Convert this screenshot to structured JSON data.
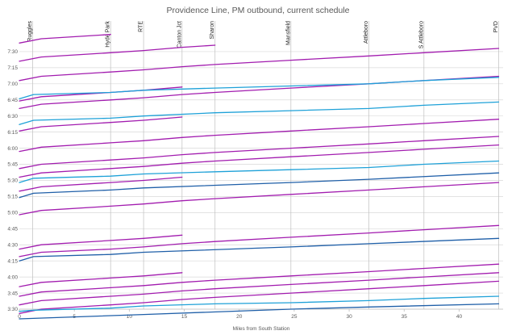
{
  "chart_data": {
    "type": "line",
    "title": "Providence Line, PM outbound, current schedule",
    "xlabel": "Miles from South Station",
    "ylabel": "",
    "xlim": [
      0,
      44
    ],
    "ylim": [
      210,
      465
    ],
    "x_ticks": [
      0,
      5,
      10,
      15,
      20,
      25,
      30,
      35,
      40
    ],
    "x_tick_labels": [
      "0",
      "5",
      "10",
      "15",
      "20",
      "25",
      "30",
      "35",
      "40"
    ],
    "y_ticks": [
      210,
      225,
      240,
      255,
      270,
      285,
      300,
      315,
      330,
      345,
      360,
      375,
      390,
      405,
      420,
      435,
      450
    ],
    "y_tick_labels": [
      "3:30",
      "3:45",
      "4:00",
      "4:15",
      "4:30",
      "4:45",
      "5:00",
      "5:15",
      "5:30",
      "5:45",
      "6:00",
      "6:15",
      "6:30",
      "6:45",
      "7:00",
      "7:15",
      "7:30"
    ],
    "grid": true,
    "stations": [
      {
        "name": "Ruggles",
        "mile": 1.2
      },
      {
        "name": "Hyde Park",
        "mile": 8.3
      },
      {
        "name": "RTE",
        "mile": 11.3
      },
      {
        "name": "Canton Jct",
        "mile": 14.8
      },
      {
        "name": "Sharon",
        "mile": 17.8
      },
      {
        "name": "Mansfield",
        "mile": 24.7
      },
      {
        "name": "Attleboro",
        "mile": 31.8
      },
      {
        "name": "S Attleboro",
        "mile": 36.8
      },
      {
        "name": "PVD",
        "mile": 43.6
      }
    ],
    "colors": {
      "local": "#a21caf",
      "express": "#1ea1d8",
      "super_express": "#1f5fa8"
    },
    "series": [
      {
        "type": "local",
        "points": [
          [
            0,
            206
          ],
          [
            2,
            210
          ],
          [
            8.3,
            214
          ],
          [
            11.3,
            216
          ],
          [
            14.8,
            219
          ],
          [
            17.8,
            221
          ],
          [
            24.7,
            225
          ],
          [
            31.8,
            229
          ],
          [
            36.8,
            232
          ],
          [
            43.6,
            236
          ]
        ]
      },
      {
        "type": "express",
        "points": [
          [
            0,
            208
          ],
          [
            1.3,
            209
          ],
          [
            8.3,
            211
          ],
          [
            11.3,
            213
          ],
          [
            17.8,
            215
          ],
          [
            24.7,
            216
          ],
          [
            31.8,
            218
          ],
          [
            36.8,
            220
          ],
          [
            43.6,
            222
          ]
        ]
      },
      {
        "type": "super_express",
        "points": [
          [
            0,
            201
          ],
          [
            11.3,
            205
          ],
          [
            24.7,
            210
          ],
          [
            31.8,
            212
          ],
          [
            43.6,
            215
          ]
        ]
      },
      {
        "type": "local",
        "points": [
          [
            0,
            214
          ],
          [
            2,
            218
          ],
          [
            8.3,
            222
          ],
          [
            11.3,
            224
          ],
          [
            14.8,
            227
          ],
          [
            17.8,
            229
          ],
          [
            24.7,
            233
          ],
          [
            31.8,
            237
          ],
          [
            36.8,
            240
          ],
          [
            43.6,
            244
          ]
        ]
      },
      {
        "type": "local",
        "points": [
          [
            0,
            222
          ],
          [
            2,
            226
          ],
          [
            8.3,
            230
          ],
          [
            11.3,
            232
          ],
          [
            14.8,
            235
          ],
          [
            17.8,
            237
          ],
          [
            24.7,
            241
          ],
          [
            31.8,
            245
          ],
          [
            36.8,
            248
          ],
          [
            43.6,
            252
          ]
        ]
      },
      {
        "type": "local",
        "points": [
          [
            0,
            231
          ],
          [
            2,
            235
          ],
          [
            8.3,
            239
          ],
          [
            11.3,
            241
          ],
          [
            14.8,
            244
          ]
        ]
      },
      {
        "type": "super_express",
        "points": [
          [
            0,
            255
          ],
          [
            1.3,
            259
          ],
          [
            8.3,
            261
          ],
          [
            11.3,
            263
          ],
          [
            24.7,
            268
          ],
          [
            31.8,
            271
          ],
          [
            43.6,
            276
          ]
        ]
      },
      {
        "type": "local",
        "points": [
          [
            0,
            259
          ],
          [
            2,
            263
          ],
          [
            8.3,
            266
          ],
          [
            11.3,
            268
          ],
          [
            14.8,
            271
          ],
          [
            17.8,
            273
          ],
          [
            24.7,
            277
          ],
          [
            31.8,
            281
          ],
          [
            36.8,
            284
          ],
          [
            43.6,
            288
          ]
        ]
      },
      {
        "type": "local",
        "points": [
          [
            0,
            266
          ],
          [
            2,
            270
          ],
          [
            8.3,
            274
          ],
          [
            11.3,
            276
          ],
          [
            14.8,
            279
          ]
        ]
      },
      {
        "type": "local",
        "points": [
          [
            0,
            298
          ],
          [
            2,
            302
          ],
          [
            8.3,
            306
          ],
          [
            11.3,
            308
          ],
          [
            14.8,
            311
          ],
          [
            17.8,
            313
          ],
          [
            24.7,
            317
          ],
          [
            31.8,
            321
          ],
          [
            36.8,
            324
          ],
          [
            43.6,
            328
          ]
        ]
      },
      {
        "type": "super_express",
        "points": [
          [
            0,
            314
          ],
          [
            1.3,
            318
          ],
          [
            8.3,
            321
          ],
          [
            11.3,
            323
          ],
          [
            24.7,
            328
          ],
          [
            31.8,
            331
          ],
          [
            43.6,
            337
          ]
        ]
      },
      {
        "type": "local",
        "points": [
          [
            0,
            320
          ],
          [
            2,
            324
          ],
          [
            8.3,
            328
          ],
          [
            11.3,
            330
          ],
          [
            14.8,
            333
          ]
        ]
      },
      {
        "type": "express",
        "points": [
          [
            0,
            328
          ],
          [
            1.3,
            332
          ],
          [
            8.3,
            334
          ],
          [
            11.3,
            336
          ],
          [
            17.8,
            338
          ],
          [
            24.7,
            340
          ],
          [
            31.8,
            342
          ],
          [
            36.8,
            345
          ],
          [
            43.6,
            348
          ]
        ]
      },
      {
        "type": "local",
        "points": [
          [
            0,
            333
          ],
          [
            2,
            337
          ],
          [
            8.3,
            341
          ],
          [
            11.3,
            343
          ],
          [
            14.8,
            346
          ],
          [
            17.8,
            348
          ],
          [
            24.7,
            352
          ],
          [
            31.8,
            356
          ],
          [
            36.8,
            359
          ],
          [
            43.6,
            363
          ]
        ]
      },
      {
        "type": "local",
        "points": [
          [
            0,
            341
          ],
          [
            2,
            345
          ],
          [
            8.3,
            349
          ],
          [
            11.3,
            351
          ],
          [
            14.8,
            354
          ],
          [
            17.8,
            356
          ],
          [
            24.7,
            360
          ],
          [
            31.8,
            364
          ],
          [
            36.8,
            367
          ],
          [
            43.6,
            371
          ]
        ]
      },
      {
        "type": "local",
        "points": [
          [
            0,
            357
          ],
          [
            2,
            361
          ],
          [
            8.3,
            365
          ],
          [
            11.3,
            367
          ],
          [
            14.8,
            370
          ],
          [
            17.8,
            372
          ],
          [
            24.7,
            376
          ],
          [
            31.8,
            380
          ],
          [
            36.8,
            383
          ],
          [
            43.6,
            387
          ]
        ]
      },
      {
        "type": "local",
        "points": [
          [
            0,
            376
          ],
          [
            2,
            380
          ],
          [
            8.3,
            384
          ],
          [
            11.3,
            386
          ],
          [
            14.8,
            389
          ]
        ]
      },
      {
        "type": "express",
        "points": [
          [
            0,
            382
          ],
          [
            1.3,
            386
          ],
          [
            8.3,
            388
          ],
          [
            11.3,
            390
          ],
          [
            17.8,
            393
          ],
          [
            24.7,
            395
          ],
          [
            31.8,
            397
          ],
          [
            36.8,
            400
          ],
          [
            43.6,
            403
          ]
        ]
      },
      {
        "type": "local",
        "points": [
          [
            0,
            397
          ],
          [
            2,
            401
          ],
          [
            8.3,
            405
          ],
          [
            11.3,
            407
          ],
          [
            14.8,
            410
          ],
          [
            17.8,
            412
          ],
          [
            24.7,
            416
          ],
          [
            31.8,
            420
          ],
          [
            36.8,
            423
          ],
          [
            43.6,
            427
          ]
        ]
      },
      {
        "type": "local",
        "points": [
          [
            0,
            404
          ],
          [
            2,
            408
          ],
          [
            8.3,
            412
          ],
          [
            11.3,
            414
          ],
          [
            14.8,
            417
          ]
        ]
      },
      {
        "type": "express",
        "points": [
          [
            0,
            406
          ],
          [
            1.3,
            410
          ],
          [
            8.3,
            412
          ],
          [
            11.3,
            414
          ],
          [
            17.8,
            416
          ],
          [
            24.7,
            418
          ],
          [
            31.8,
            420
          ],
          [
            36.8,
            423
          ],
          [
            43.6,
            426
          ]
        ]
      },
      {
        "type": "local",
        "points": [
          [
            0,
            423
          ],
          [
            2,
            427
          ],
          [
            8.3,
            431
          ],
          [
            11.3,
            433
          ],
          [
            14.8,
            436
          ],
          [
            17.8,
            438
          ],
          [
            24.7,
            442
          ],
          [
            31.8,
            446
          ],
          [
            36.8,
            449
          ],
          [
            43.6,
            453
          ]
        ]
      },
      {
        "type": "local",
        "points": [
          [
            0,
            441
          ],
          [
            2,
            445
          ],
          [
            8.3,
            449
          ],
          [
            11.3,
            451
          ],
          [
            14.8,
            454
          ],
          [
            17.8,
            456
          ]
        ]
      },
      {
        "type": "local",
        "points": [
          [
            0,
            458
          ],
          [
            2,
            462
          ],
          [
            8.3,
            466
          ]
        ]
      }
    ]
  }
}
